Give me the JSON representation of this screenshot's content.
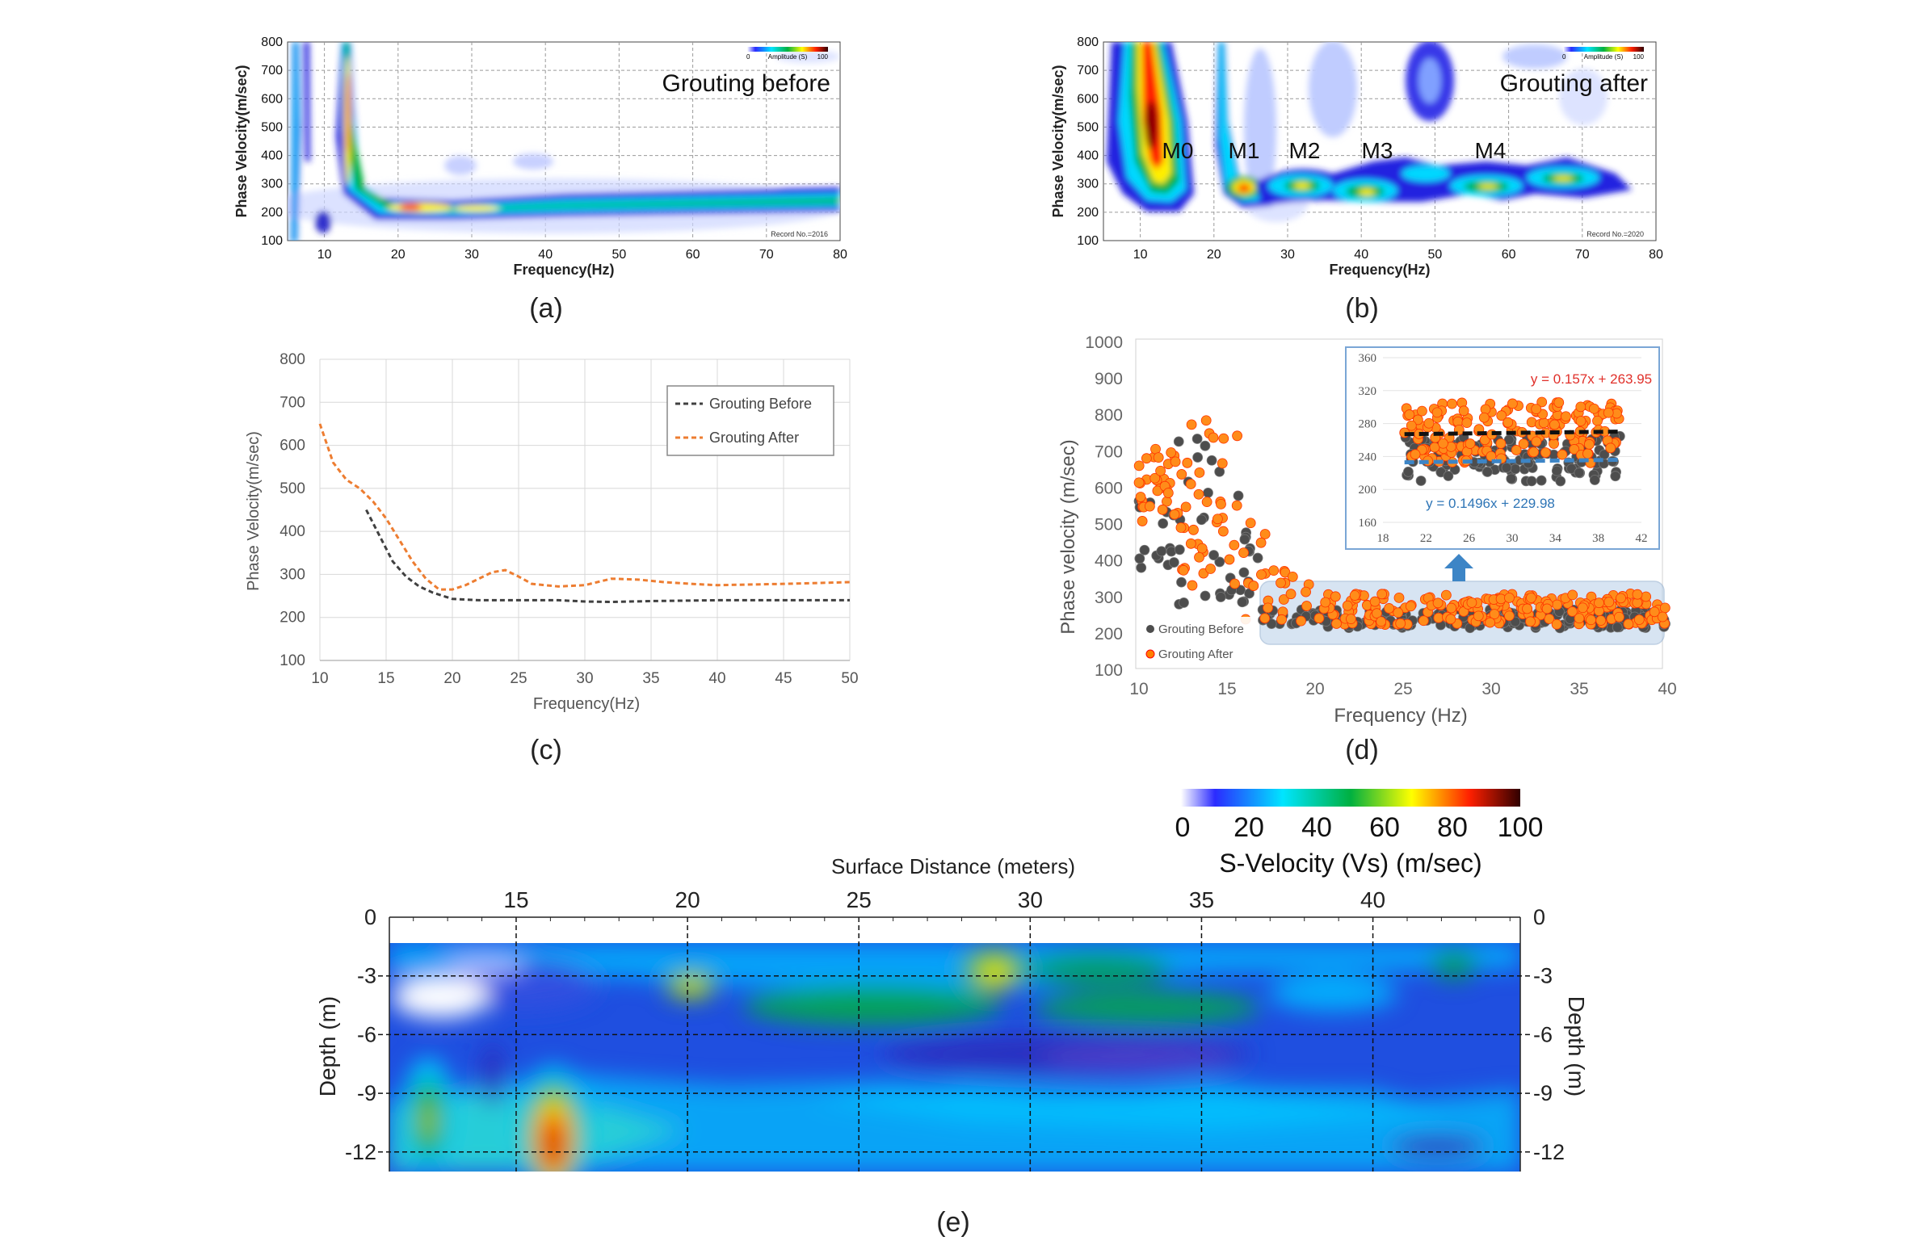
{
  "panels": {
    "a": {
      "caption": "(a)",
      "title": "Grouting before",
      "record": "Record No.=2016",
      "amplitude_label": "Amplitude (S)",
      "amp_min": "0",
      "amp_max": "100"
    },
    "b": {
      "caption": "(b)",
      "title": "Grouting after",
      "record": "Record No.=2020",
      "amplitude_label": "Amplitude (S)",
      "amp_min": "0",
      "amp_max": "100",
      "modes": [
        "M0",
        "M1",
        "M2",
        "M3",
        "M4"
      ]
    },
    "c": {
      "caption": "(c)"
    },
    "d": {
      "caption": "(d)",
      "inset_eq_after": "y = 0.157x + 263.95",
      "inset_eq_before": "y = 0.1496x + 229.98"
    },
    "e": {
      "caption": "(e)",
      "colorbar_title": "S-Velocity (Vs) (m/sec)"
    }
  },
  "chart_data": [
    {
      "id": "a",
      "type": "heatmap",
      "title": "Grouting before",
      "xlabel": "Frequency(Hz)",
      "ylabel": "Phase Velocity(m/sec)",
      "xlim": [
        5,
        80
      ],
      "ylim": [
        100,
        800
      ],
      "xticks": [
        10,
        20,
        30,
        40,
        50,
        60,
        70,
        80
      ],
      "yticks": [
        100,
        200,
        300,
        400,
        500,
        600,
        700,
        800
      ],
      "ridge": {
        "x": [
          12,
          14,
          17,
          20,
          25,
          30,
          35,
          40,
          50,
          60,
          70,
          80
        ],
        "y": [
          800,
          450,
          280,
          240,
          225,
          225,
          235,
          245,
          250,
          250,
          255,
          262
        ]
      }
    },
    {
      "id": "b",
      "type": "heatmap",
      "title": "Grouting after",
      "xlabel": "Frequency(Hz)",
      "ylabel": "Phase Velocity(m/sec)",
      "xlim": [
        5,
        80
      ],
      "ylim": [
        100,
        800
      ],
      "xticks": [
        10,
        20,
        30,
        40,
        50,
        60,
        70,
        80
      ],
      "yticks": [
        100,
        200,
        300,
        400,
        500,
        600,
        700,
        800
      ],
      "modes": [
        {
          "name": "M0",
          "x": 13,
          "y": 430
        },
        {
          "name": "M1",
          "x": 25,
          "y": 300
        },
        {
          "name": "M2",
          "x": 33,
          "y": 300
        },
        {
          "name": "M3",
          "x": 42,
          "y": 285
        },
        {
          "name": "M4",
          "x": 57,
          "y": 315
        }
      ]
    },
    {
      "id": "c",
      "type": "line",
      "xlabel": "Frequency(Hz)",
      "ylabel": "Phase Velocity(m/sec)",
      "xlim": [
        10,
        50
      ],
      "ylim": [
        100,
        800
      ],
      "xticks": [
        10,
        15,
        20,
        25,
        30,
        35,
        40,
        45,
        50
      ],
      "yticks": [
        100,
        200,
        300,
        400,
        500,
        600,
        700,
        800
      ],
      "legend_position": "top-right",
      "series": [
        {
          "name": "Grouting Before",
          "color": "#404040",
          "dash": "6,4",
          "x": [
            13.5,
            14.5,
            15.5,
            16.5,
            17.5,
            18.5,
            19.5,
            20,
            22,
            25,
            28,
            30,
            32,
            35,
            40,
            45,
            50
          ],
          "y": [
            450,
            390,
            330,
            295,
            272,
            258,
            248,
            243,
            240,
            240,
            240,
            237,
            236,
            238,
            240,
            240,
            240
          ]
        },
        {
          "name": "Grouting After",
          "color": "#ed7d31",
          "dash": "6,4",
          "x": [
            10,
            11,
            12,
            13,
            14,
            15,
            16,
            17,
            18,
            19,
            20,
            21,
            22,
            23,
            24,
            25,
            26,
            28,
            30,
            32,
            34,
            36,
            38,
            40,
            45,
            50
          ],
          "y": [
            650,
            560,
            520,
            500,
            470,
            430,
            380,
            330,
            290,
            265,
            265,
            275,
            290,
            305,
            310,
            295,
            278,
            272,
            275,
            290,
            288,
            282,
            278,
            275,
            278,
            282
          ]
        }
      ]
    },
    {
      "id": "d",
      "type": "scatter",
      "xlabel": "Frequency (Hz)",
      "ylabel": "Phase velocity  (m/sec)",
      "xlim": [
        10,
        40
      ],
      "ylim": [
        100,
        1000
      ],
      "xticks": [
        10,
        15,
        20,
        25,
        30,
        35,
        40
      ],
      "yticks": [
        100,
        200,
        300,
        400,
        500,
        600,
        700,
        800,
        900,
        1000
      ],
      "series": [
        {
          "name": "Grouting Before",
          "color": "#4d4d4d"
        },
        {
          "name": "Grouting After",
          "color": "#ff7f00"
        }
      ],
      "inset": {
        "xlim": [
          18,
          42
        ],
        "ylim": [
          160,
          360
        ],
        "xticks": [
          18,
          22,
          26,
          30,
          34,
          38,
          42
        ],
        "yticks": [
          160,
          200,
          240,
          280,
          320,
          360
        ],
        "fit_after": {
          "slope": 0.157,
          "intercept": 263.95,
          "label": "y = 0.157x + 263.95"
        },
        "fit_before": {
          "slope": 0.1496,
          "intercept": 229.98,
          "label": "y = 0.1496x + 229.98"
        }
      }
    },
    {
      "id": "e",
      "type": "heatmap",
      "xlabel": "Surface Distance (meters)",
      "ylabel": "Depth (m)",
      "ylabel_right": "Depth (m)",
      "colorbar_title": "S-Velocity (Vs) (m/sec)",
      "colorbar_ticks": [
        0,
        20,
        40,
        60,
        80,
        100
      ],
      "xlim": [
        11.3,
        44.3
      ],
      "ylim": [
        -13,
        0
      ],
      "xticks": [
        15,
        20,
        25,
        30,
        35,
        40
      ],
      "yticks": [
        0,
        -3,
        -6,
        -9,
        -12
      ]
    }
  ]
}
